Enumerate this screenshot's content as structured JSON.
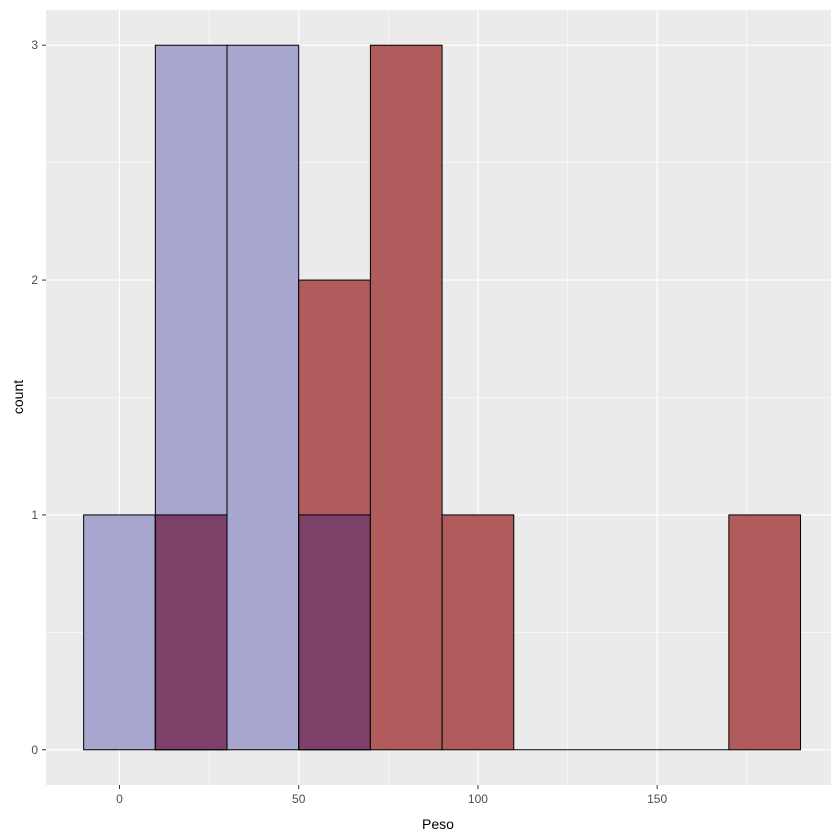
{
  "chart_data": {
    "type": "histogram",
    "xlabel": "Peso",
    "ylabel": "count",
    "xlim": [
      -20.5,
      198.5
    ],
    "ylim": [
      -0.15,
      3.15
    ],
    "x_ticks": [
      0,
      50,
      100,
      150
    ],
    "x_minor_ticks": [
      25,
      75,
      125,
      175
    ],
    "y_ticks": [
      0,
      1,
      2,
      3
    ],
    "y_minor_ticks": [
      0.5,
      1.5,
      2.5
    ],
    "grid": true,
    "panel_background": "#ebebeb",
    "grid_color": "#ffffff",
    "bin_edge_color": "#000000",
    "bins": [
      [
        -10,
        10
      ],
      [
        10,
        30
      ],
      [
        30,
        50
      ],
      [
        50,
        70
      ],
      [
        70,
        90
      ],
      [
        90,
        110
      ],
      [
        110,
        130
      ],
      [
        130,
        150
      ],
      [
        150,
        170
      ],
      [
        170,
        190
      ]
    ],
    "series": [
      {
        "color": "#a6a6ce",
        "counts": [
          1,
          3,
          3,
          1,
          0,
          0,
          0,
          0,
          0,
          0
        ]
      },
      {
        "color": "#b05c5c",
        "counts": [
          0,
          1,
          0,
          2,
          3,
          1,
          0,
          0,
          0,
          1
        ]
      }
    ],
    "overlap_color": "#7b4169"
  }
}
